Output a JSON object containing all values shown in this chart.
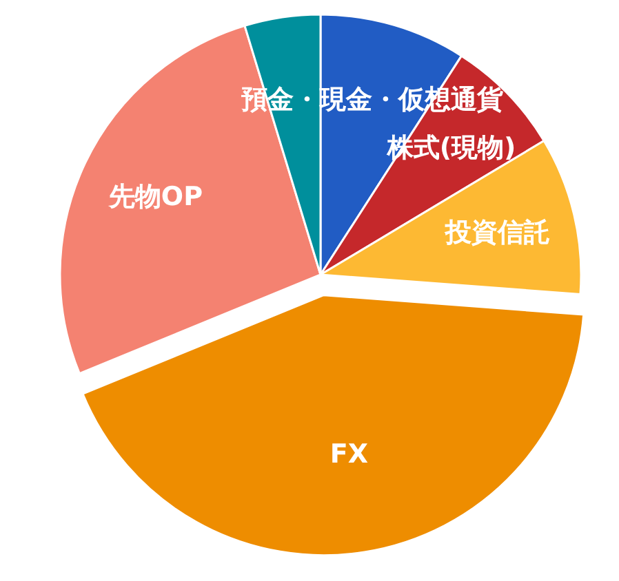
{
  "chart_data": {
    "type": "pie",
    "categories": [
      "預金・現金・仮想通貨",
      "株式(現物)",
      "投資信託",
      "FX",
      "先物OP",
      null
    ],
    "values": [
      9.1,
      7.3,
      9.8,
      42.6,
      26.5,
      4.7
    ],
    "colors": [
      "#215cc4",
      "#c5282b",
      "#fdb933",
      "#ee8d00",
      "#f48271",
      "#008f9c"
    ]
  }
}
